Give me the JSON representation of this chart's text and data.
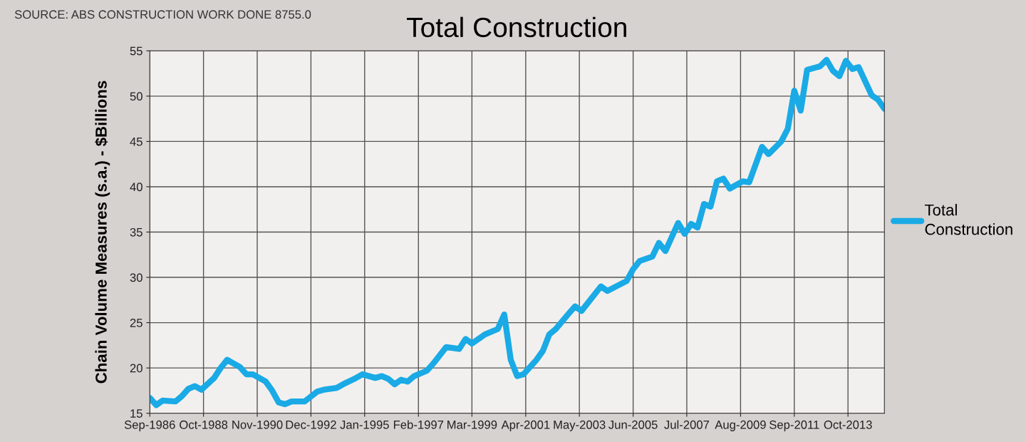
{
  "chart_data": {
    "type": "line",
    "title": "Total Construction",
    "ylabel": "Chain Volume Measures (s.a.) - $Billions",
    "annotations": [
      "SOURCE: ABS CONSTRUCTION WORK DONE 8755.0"
    ],
    "x": [
      "1986-09",
      "1986-12",
      "1987-03",
      "1987-09",
      "1987-12",
      "1988-03",
      "1988-06",
      "1988-09",
      "1989-03",
      "1989-06",
      "1989-09",
      "1989-12",
      "1990-03",
      "1990-06",
      "1990-09",
      "1991-03",
      "1991-06",
      "1991-09",
      "1991-12",
      "1992-03",
      "1992-09",
      "1993-03",
      "1993-06",
      "1993-12",
      "1994-03",
      "1994-09",
      "1994-12",
      "1995-06",
      "1995-09",
      "1995-12",
      "1996-03",
      "1996-06",
      "1996-09",
      "1996-12",
      "1997-06",
      "1997-09",
      "1998-03",
      "1998-09",
      "1998-12",
      "1999-03",
      "1999-09",
      "2000-03",
      "2000-06",
      "2000-09",
      "2000-12",
      "2001-03",
      "2001-09",
      "2001-12",
      "2002-03",
      "2002-06",
      "2002-12",
      "2003-03",
      "2003-06",
      "2004-03",
      "2004-06",
      "2005-03",
      "2005-06",
      "2005-09",
      "2006-03",
      "2006-06",
      "2006-09",
      "2007-03",
      "2007-06",
      "2007-09",
      "2007-12",
      "2008-03",
      "2008-06",
      "2008-09",
      "2008-12",
      "2009-03",
      "2009-09",
      "2009-12",
      "2010-06",
      "2010-09",
      "2011-03",
      "2011-06",
      "2011-09",
      "2011-12",
      "2012-03",
      "2012-09",
      "2012-12",
      "2013-03",
      "2013-06",
      "2013-09",
      "2013-12",
      "2014-03",
      "2014-09",
      "2014-12",
      "2015-03"
    ],
    "series": [
      {
        "name": "Total Construction",
        "color": "#1aaae6",
        "values": [
          16.7,
          15.9,
          16.4,
          16.3,
          16.9,
          17.7,
          18.0,
          17.6,
          18.9,
          20.0,
          20.9,
          20.5,
          20.1,
          19.3,
          19.3,
          18.5,
          17.5,
          16.2,
          16.0,
          16.3,
          16.3,
          17.4,
          17.6,
          17.8,
          18.2,
          18.9,
          19.3,
          18.9,
          19.1,
          18.8,
          18.2,
          18.7,
          18.5,
          19.1,
          19.7,
          20.5,
          22.3,
          22.1,
          23.2,
          22.7,
          23.7,
          24.3,
          25.9,
          20.9,
          19.1,
          19.3,
          20.9,
          21.9,
          23.7,
          24.3,
          26.0,
          26.8,
          26.3,
          29.0,
          28.5,
          29.6,
          30.9,
          31.8,
          32.3,
          33.8,
          32.9,
          36.0,
          34.8,
          35.9,
          35.5,
          38.1,
          37.8,
          40.6,
          40.9,
          39.8,
          40.6,
          40.5,
          44.4,
          43.6,
          45.0,
          46.4,
          50.6,
          48.4,
          52.9,
          53.3,
          54.0,
          52.8,
          52.2,
          53.9,
          53.0,
          53.2,
          50.1,
          49.6,
          48.6
        ]
      }
    ],
    "xlim": [
      "1986-09",
      "2015-03"
    ],
    "xticks": [
      {
        "value": "1986-09",
        "label": "Sep-1986"
      },
      {
        "value": "1988-10",
        "label": "Oct-1988"
      },
      {
        "value": "1990-11",
        "label": "Nov-1990"
      },
      {
        "value": "1992-12",
        "label": "Dec-1992"
      },
      {
        "value": "1995-01",
        "label": "Jan-1995"
      },
      {
        "value": "1997-02",
        "label": "Feb-1997"
      },
      {
        "value": "1999-03",
        "label": "Mar-1999"
      },
      {
        "value": "2001-04",
        "label": "Apr-2001"
      },
      {
        "value": "2003-05",
        "label": "May-2003"
      },
      {
        "value": "2005-06",
        "label": "Jun-2005"
      },
      {
        "value": "2007-07",
        "label": "Jul-2007"
      },
      {
        "value": "2009-08",
        "label": "Aug-2009"
      },
      {
        "value": "2011-09",
        "label": "Sep-2011"
      },
      {
        "value": "2013-10",
        "label": "Oct-2013"
      }
    ],
    "ylim": [
      15,
      55
    ],
    "yticks": [
      15,
      20,
      25,
      30,
      35,
      40,
      45,
      50,
      55
    ],
    "grid": true,
    "legend": "right",
    "marker": "none",
    "line_style": "solid"
  }
}
